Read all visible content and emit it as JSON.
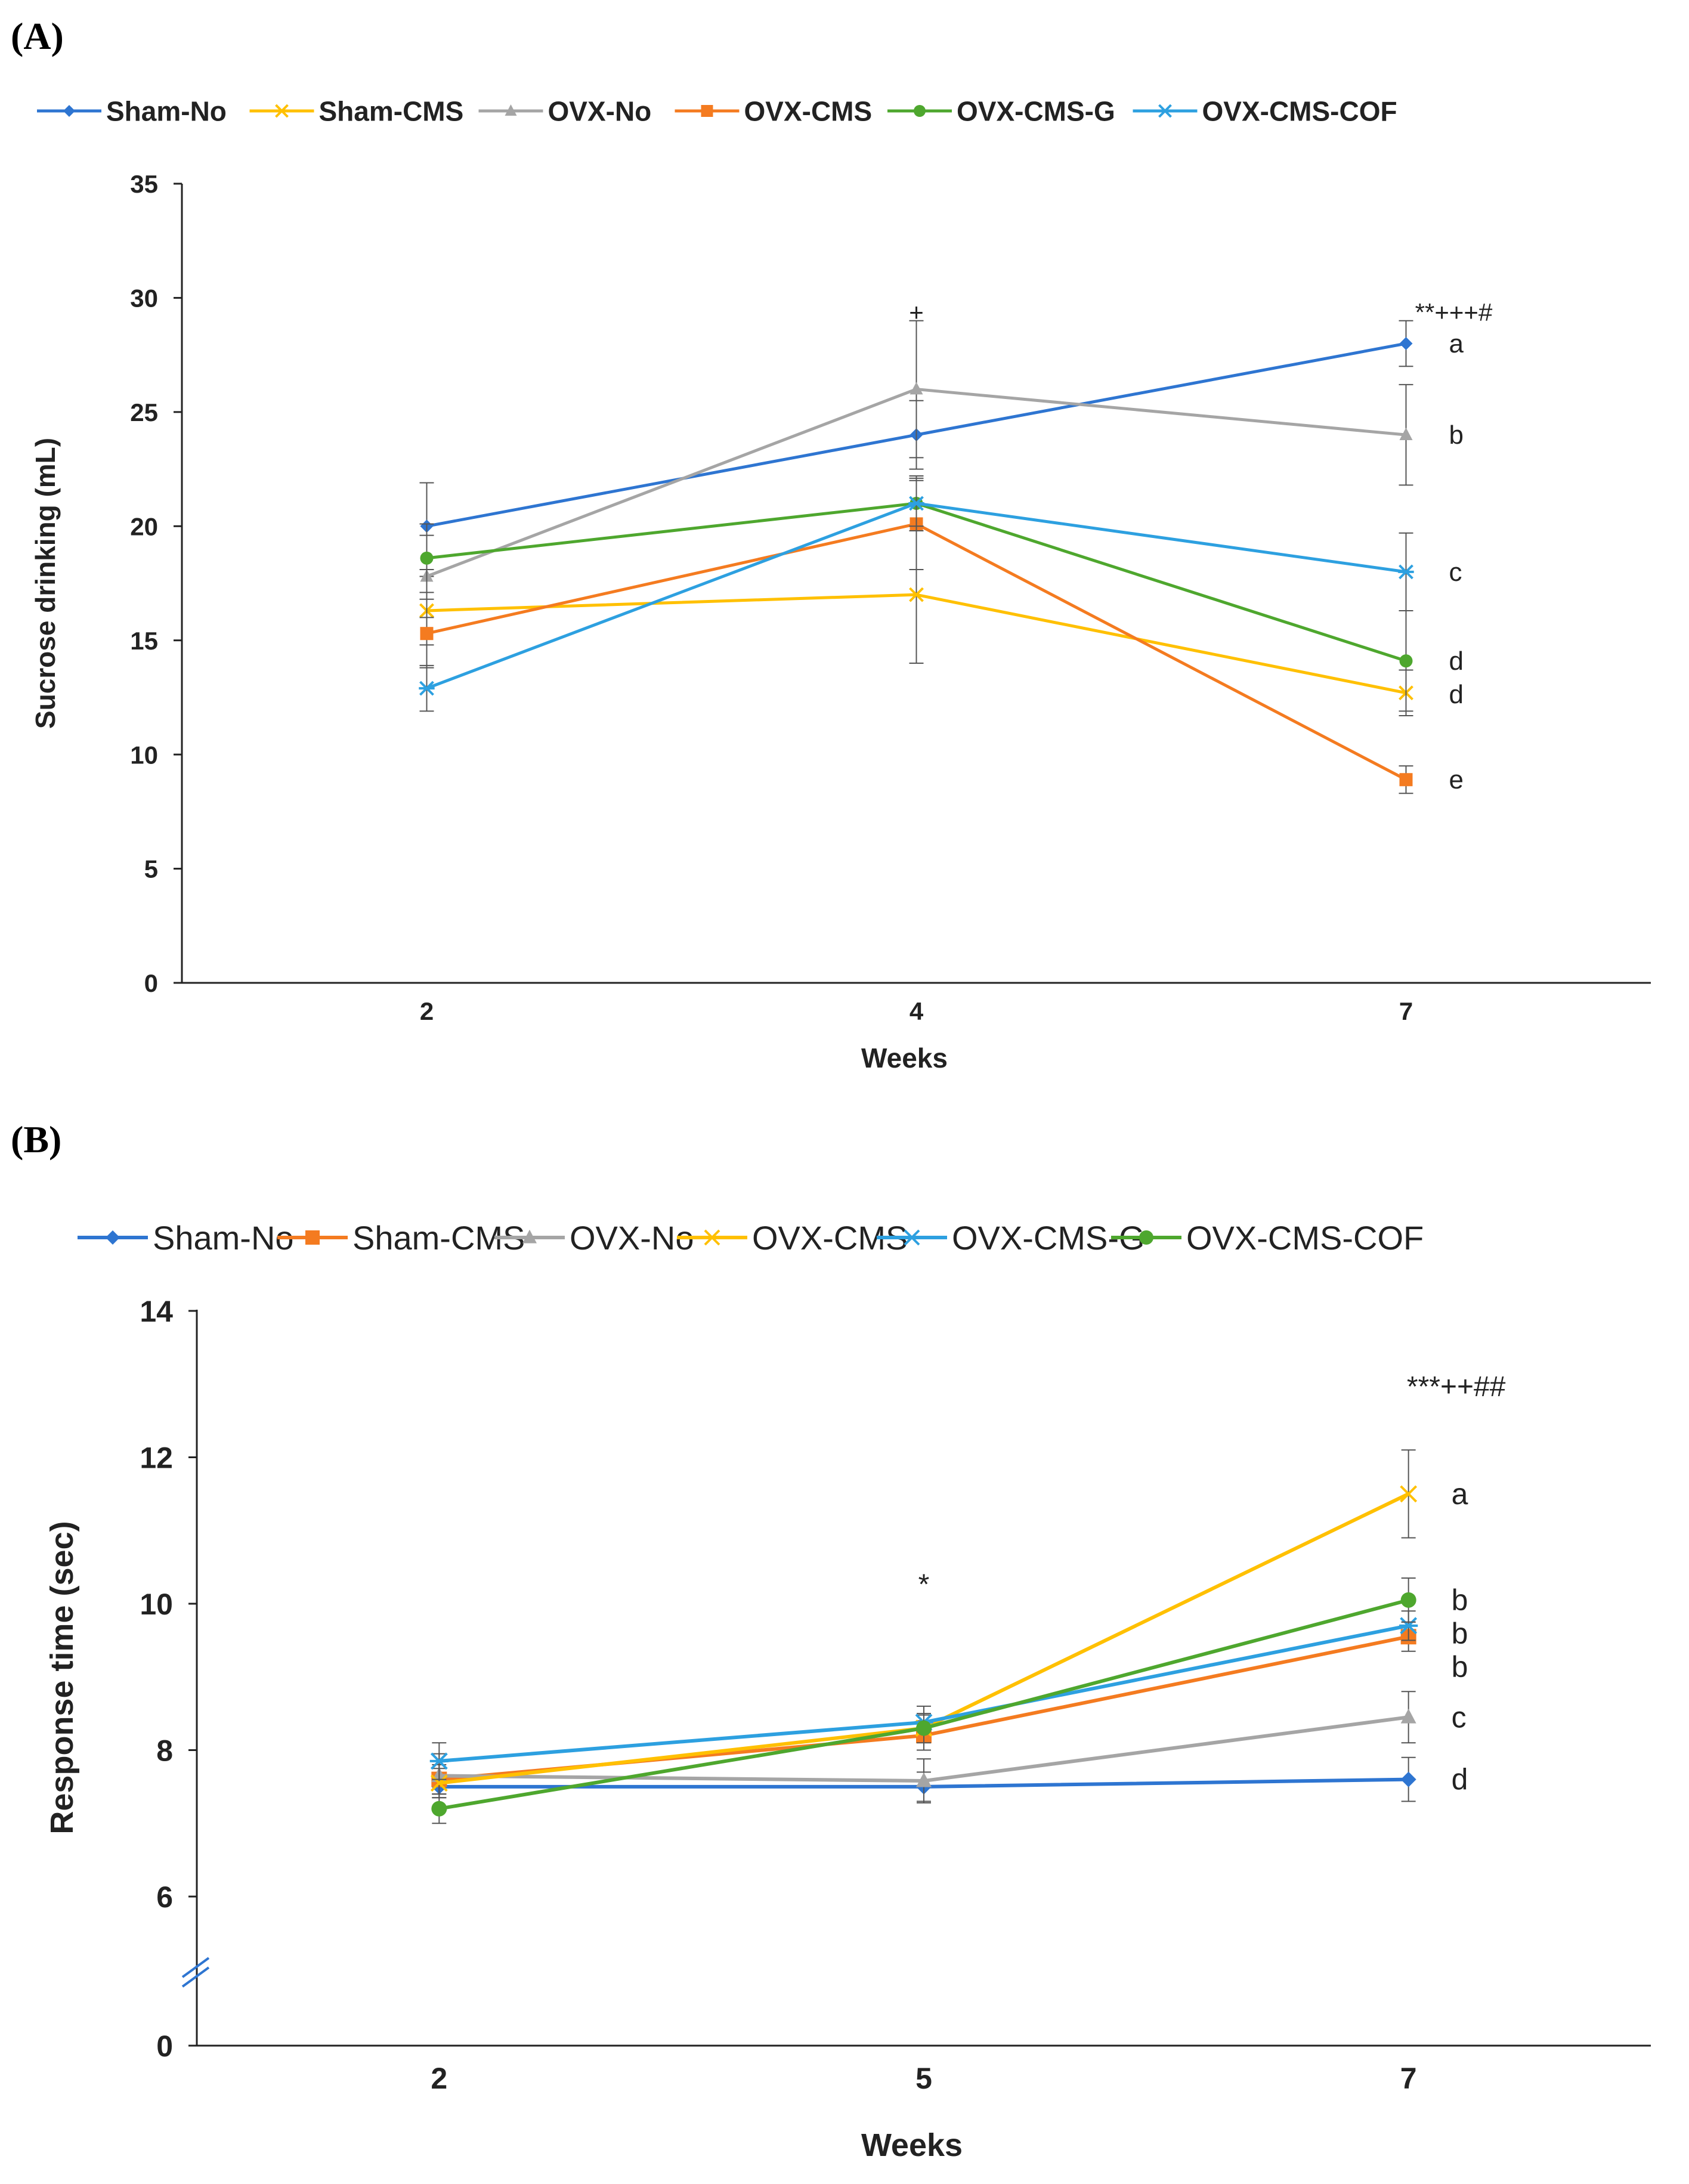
{
  "chart_data": [
    {
      "panel_label": "(A)",
      "type": "line",
      "xlabel": "Weeks",
      "ylabel": "Sucrose drinking (mL)",
      "categories": [
        "2",
        "4",
        "7"
      ],
      "ylim": [
        0,
        35
      ],
      "yticks": [
        "0",
        "5",
        "10",
        "15",
        "20",
        "25",
        "30",
        "35"
      ],
      "series": [
        {
          "name": "Sham-No",
          "color": "#2E75D1",
          "marker": "diamond",
          "values": [
            20,
            24,
            28
          ],
          "errors": [
            1.9,
            1.5,
            1.0
          ]
        },
        {
          "name": "Sham-CMS",
          "color": "#FFC000",
          "marker": "x",
          "values": [
            16.3,
            17,
            12.7
          ],
          "errors": [
            1.5,
            3.0,
            1.0
          ]
        },
        {
          "name": "OVX-No",
          "color": "#A5A5A5",
          "marker": "triangle",
          "values": [
            17.8,
            26,
            24
          ],
          "errors": [
            1.8,
            3.0,
            2.2
          ]
        },
        {
          "name": "OVX-CMS",
          "color": "#F47B20",
          "marker": "square",
          "values": [
            15.3,
            20.1,
            8.9
          ],
          "errors": [
            1.5,
            2.0,
            0.6
          ]
        },
        {
          "name": "OVX-CMS-G",
          "color": "#4EA72E",
          "marker": "circle",
          "values": [
            18.6,
            21,
            14.1
          ],
          "errors": [
            1.5,
            1.2,
            2.2
          ]
        },
        {
          "name": "OVX-CMS-COF",
          "color": "#2DA0E0",
          "marker": "asterisk",
          "values": [
            12.9,
            21,
            18
          ],
          "errors": [
            1.0,
            1.0,
            1.7
          ]
        }
      ],
      "annotations": [
        {
          "category": "4",
          "y": 29.2,
          "text": "+"
        },
        {
          "category": "7",
          "y": 29.2,
          "text": "**+++#"
        }
      ],
      "group_letters": [
        {
          "series": "Sham-No",
          "text": "a"
        },
        {
          "series": "OVX-No",
          "text": "b"
        },
        {
          "series": "OVX-CMS-COF",
          "text": "c"
        },
        {
          "series": "OVX-CMS-G",
          "text": "d"
        },
        {
          "series": "Sham-CMS",
          "text": "d"
        },
        {
          "series": "OVX-CMS",
          "text": "e"
        }
      ]
    },
    {
      "panel_label": "(B)",
      "type": "line",
      "xlabel": "Weeks",
      "ylabel": "Response time (sec)",
      "categories": [
        "2",
        "5",
        "7"
      ],
      "y_axis_break": true,
      "yticks": [
        "0",
        "6",
        "8",
        "10",
        "12",
        "14"
      ],
      "ylim_upper_segment": [
        6,
        14
      ],
      "series": [
        {
          "name": "Sham-No",
          "color": "#2E75D1",
          "marker": "diamond",
          "values": [
            7.5,
            7.5,
            7.6
          ],
          "errors": [
            0.1,
            0.2,
            0.3
          ]
        },
        {
          "name": "Sham-CMS",
          "color": "#F47B20",
          "marker": "square",
          "values": [
            7.6,
            8.2,
            9.55
          ],
          "errors": [
            0.2,
            0.2,
            0.2
          ]
        },
        {
          "name": "OVX-No",
          "color": "#A5A5A5",
          "marker": "triangle",
          "values": [
            7.65,
            7.58,
            8.45
          ],
          "errors": [
            0.3,
            0.3,
            0.35
          ]
        },
        {
          "name": "OVX-CMS",
          "color": "#FFC000",
          "marker": "x",
          "values": [
            7.55,
            8.3,
            11.5
          ],
          "errors": [
            0.2,
            0.2,
            0.6
          ]
        },
        {
          "name": "OVX-CMS-G",
          "color": "#2DA0E0",
          "marker": "asterisk",
          "values": [
            7.85,
            8.38,
            9.7
          ],
          "errors": [
            0.25,
            0.1,
            0.2
          ]
        },
        {
          "name": "OVX-CMS-COF",
          "color": "#4EA72E",
          "marker": "circle",
          "values": [
            7.2,
            8.3,
            10.05
          ],
          "errors": [
            0.2,
            0.3,
            0.3
          ]
        }
      ],
      "annotations": [
        {
          "category": "5",
          "y": 10.2,
          "text": "*"
        },
        {
          "category": "7",
          "y": 12.9,
          "text": "***++##"
        }
      ],
      "group_letters": [
        {
          "series": "OVX-CMS",
          "text": "a"
        },
        {
          "series": "OVX-CMS-COF",
          "text": "b"
        },
        {
          "series": "OVX-CMS-G",
          "text": "b"
        },
        {
          "series": "Sham-CMS",
          "text": "b"
        },
        {
          "series": "OVX-No",
          "text": "c"
        },
        {
          "series": "Sham-No",
          "text": "d"
        }
      ]
    }
  ]
}
